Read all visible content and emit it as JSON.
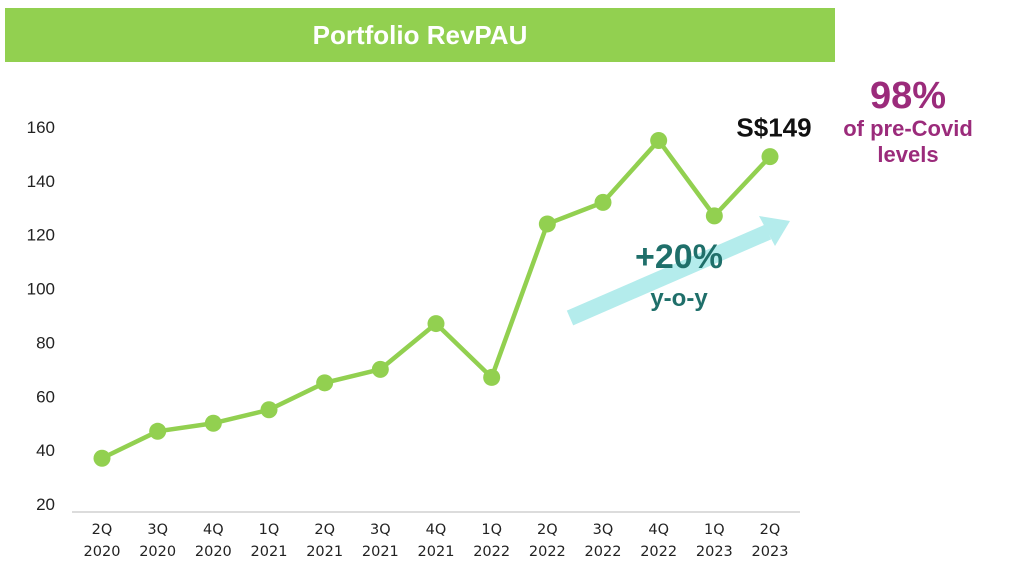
{
  "header": {
    "title": "Portfolio RevPAU"
  },
  "precovid": {
    "percent": "98%",
    "line1": "of pre-Covid",
    "line2": "levels"
  },
  "chart_data": {
    "type": "line",
    "title": "Portfolio RevPAU",
    "xlabel": "",
    "ylabel": "",
    "categories": [
      [
        "2Q",
        "2020"
      ],
      [
        "3Q",
        "2020"
      ],
      [
        "4Q",
        "2020"
      ],
      [
        "1Q",
        "2021"
      ],
      [
        "2Q",
        "2021"
      ],
      [
        "3Q",
        "2021"
      ],
      [
        "4Q",
        "2021"
      ],
      [
        "1Q",
        "2022"
      ],
      [
        "2Q",
        "2022"
      ],
      [
        "3Q",
        "2022"
      ],
      [
        "4Q",
        "2022"
      ],
      [
        "1Q",
        "2023"
      ],
      [
        "2Q",
        "2023"
      ]
    ],
    "series": [
      {
        "values": [
          37,
          47,
          50,
          55,
          65,
          70,
          87,
          67,
          124,
          132,
          155,
          127,
          149
        ],
        "color": "#92d050"
      }
    ],
    "ylim": [
      20,
      160
    ],
    "yticks": [
      20,
      40,
      60,
      80,
      100,
      120,
      140,
      160
    ],
    "grid": false,
    "legend": "none",
    "annotations": {
      "last_value": "S$149",
      "growth": "+20%",
      "growth_sub": "y-o-y",
      "arrow_color": "#b4ecec"
    }
  }
}
